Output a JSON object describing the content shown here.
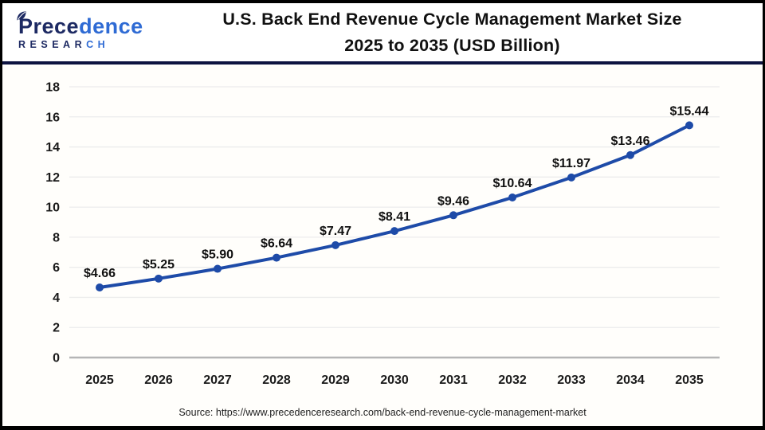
{
  "header": {
    "logo": {
      "name": "Precedence Research",
      "word_part1": "Prece",
      "word_part2": "dence",
      "sub_part1": "RESEAR",
      "sub_part2": "CH"
    },
    "title_line1": "U.S. Back End Revenue Cycle Management Market Size",
    "title_line2": "2025 to 2035 (USD Billion)"
  },
  "chart_data": {
    "type": "line",
    "title": "U.S. Back End Revenue Cycle Management Market Size 2025 to 2035 (USD Billion)",
    "categories": [
      "2025",
      "2026",
      "2027",
      "2028",
      "2029",
      "2030",
      "2031",
      "2032",
      "2033",
      "2034",
      "2035"
    ],
    "values": [
      4.66,
      5.25,
      5.9,
      6.64,
      7.47,
      8.41,
      9.46,
      10.64,
      11.97,
      13.46,
      15.44
    ],
    "point_labels": [
      "$4.66",
      "$5.25",
      "$5.90",
      "$6.64",
      "$7.47",
      "$8.41",
      "$9.46",
      "$10.64",
      "$11.97",
      "$13.46",
      "$15.44"
    ],
    "xlabel": "",
    "ylabel": "",
    "ylim": [
      0,
      18
    ],
    "ytick_step": 2,
    "grid": true,
    "legend_position": "none",
    "line_color": "#1e4ba8",
    "marker_color": "#1e4ba8",
    "gridline_color": "#ececec",
    "baseline_color": "#b5b5b5",
    "tick_label_color": "#1a1a1a",
    "point_label_color": "#111111"
  },
  "footer": {
    "source": "Source: https://www.precedenceresearch.com/back-end-revenue-cycle-management-market"
  }
}
